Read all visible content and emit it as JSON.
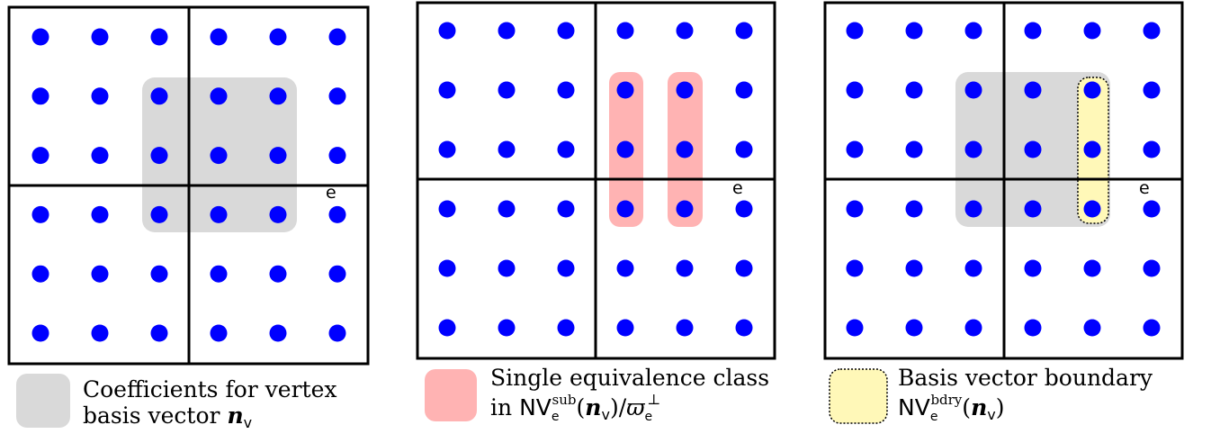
{
  "panels": [
    {
      "edge_label": "e"
    },
    {
      "edge_label": "e"
    },
    {
      "edge_label": "e"
    }
  ],
  "legend": [
    {
      "line1": "Coefficients for vertex",
      "line2": "basis vector",
      "vector": "n",
      "vector_sub": "v"
    },
    {
      "line1": "Single equivalence class",
      "prefix": "in",
      "set": "NV",
      "set_sub": "e",
      "set_sup": "sub",
      "open": "(",
      "vector": "n",
      "vector_sub": "v",
      "close": ")/",
      "varpi": "ϖ",
      "varpi_sub": "e",
      "varpi_sup": "⊥"
    },
    {
      "line1": "Basis vector boundary",
      "set": "NV",
      "set_sub": "e",
      "set_sup": "bdry",
      "open": "(",
      "vector": "n",
      "vector_sub": "v",
      "close": ")"
    }
  ]
}
